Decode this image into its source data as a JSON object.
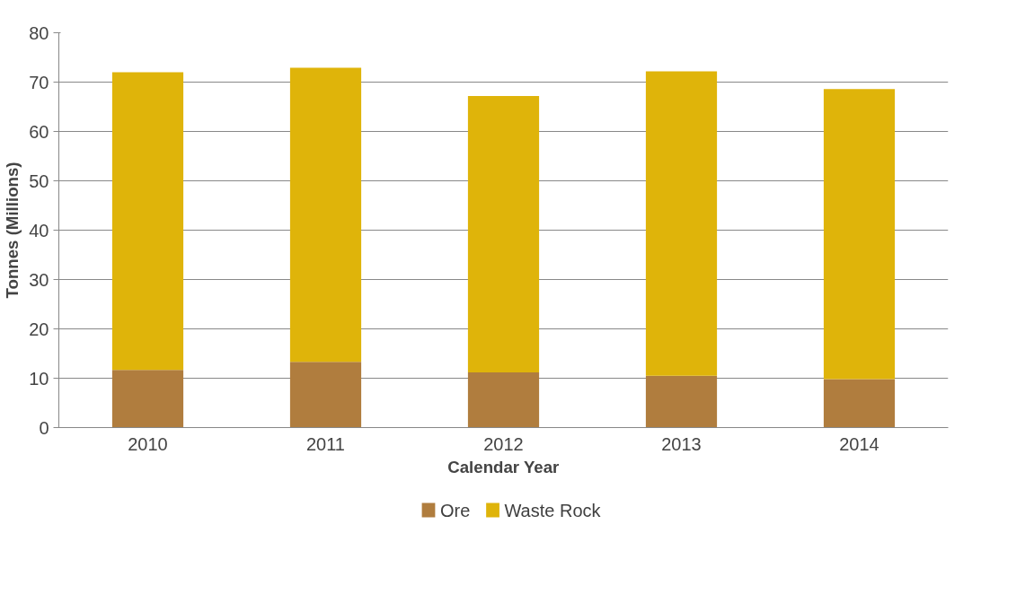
{
  "chart_data": {
    "type": "bar",
    "stacked": true,
    "xlabel": "Calendar Year",
    "ylabel": "Tonnes (Millions)",
    "categories": [
      "2010",
      "2011",
      "2012",
      "2013",
      "2014"
    ],
    "series": [
      {
        "name": "Ore",
        "color": "#b07d3e",
        "values": [
          11.7,
          13.3,
          11.2,
          10.5,
          9.8
        ]
      },
      {
        "name": "Waste Rock",
        "color": "#dfb40a",
        "values": [
          60.3,
          59.6,
          56.0,
          61.7,
          58.8
        ]
      }
    ],
    "ylim": [
      0,
      80
    ],
    "yticks": [
      0,
      10,
      20,
      30,
      40,
      50,
      60,
      70,
      80
    ],
    "grid": "y",
    "legend": "bottom"
  }
}
